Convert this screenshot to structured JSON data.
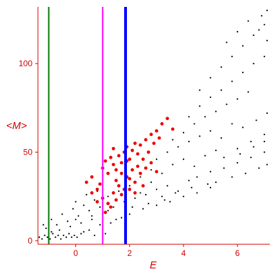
{
  "chart_data": {
    "type": "scatter",
    "title": "",
    "xlabel": "E",
    "ylabel": "<M>",
    "xlim": [
      -1.4,
      7.2
    ],
    "ylim": [
      -2,
      132
    ],
    "x_ticks": [
      0,
      2,
      4,
      6
    ],
    "y_ticks": [
      0,
      50,
      100
    ],
    "grid": false,
    "legend": "none",
    "colors": {
      "axis": "#d40000",
      "background": "#ffffff"
    },
    "vertical_lines": [
      {
        "x": -1.0,
        "color": "#007700",
        "width": "thin"
      },
      {
        "x": 1.0,
        "color": "#ff00ff",
        "width": "thin"
      },
      {
        "x": 1.85,
        "color": "#0000ff",
        "width": "thick"
      }
    ],
    "series": [
      {
        "color": "#000000",
        "marker": "small dots",
        "points": [
          [
            -1.35,
            2
          ],
          [
            -1.25,
            1
          ],
          [
            -1.15,
            3
          ],
          [
            -1.05,
            2
          ],
          [
            -0.95,
            1
          ],
          [
            -0.85,
            4
          ],
          [
            -0.75,
            2
          ],
          [
            -0.65,
            3
          ],
          [
            -0.55,
            1
          ],
          [
            -0.45,
            3
          ],
          [
            -0.35,
            2
          ],
          [
            -0.25,
            4
          ],
          [
            -0.15,
            2
          ],
          [
            -0.05,
            3
          ],
          [
            0.05,
            2
          ],
          [
            0.2,
            4
          ],
          [
            -1.1,
            7
          ],
          [
            -0.9,
            12
          ],
          [
            -0.7,
            9
          ],
          [
            -0.5,
            15
          ],
          [
            -0.3,
            11
          ],
          [
            -0.1,
            18
          ],
          [
            0.1,
            14
          ],
          [
            0.3,
            20
          ],
          [
            0.5,
            17
          ],
          [
            0.7,
            23
          ],
          [
            0.9,
            19
          ],
          [
            -0.6,
            6
          ],
          [
            -0.2,
            8
          ],
          [
            0.2,
            10
          ],
          [
            0.6,
            12
          ],
          [
            1.0,
            15
          ],
          [
            0.0,
            22
          ],
          [
            0.4,
            26
          ],
          [
            0.8,
            28
          ],
          [
            1.2,
            25
          ],
          [
            1.6,
            28
          ],
          [
            2.0,
            31
          ],
          [
            2.4,
            27
          ],
          [
            2.8,
            33
          ],
          [
            1.4,
            19
          ],
          [
            1.8,
            22
          ],
          [
            2.2,
            24
          ],
          [
            2.6,
            26
          ],
          [
            3.0,
            29
          ],
          [
            3.4,
            31
          ],
          [
            3.8,
            28
          ],
          [
            4.2,
            34
          ],
          [
            1.5,
            12
          ],
          [
            2.0,
            15
          ],
          [
            2.5,
            18
          ],
          [
            3.0,
            20
          ],
          [
            3.5,
            22
          ],
          [
            4.0,
            25
          ],
          [
            4.5,
            27
          ],
          [
            5.0,
            30
          ],
          [
            2.4,
            36
          ],
          [
            2.8,
            40
          ],
          [
            3.2,
            38
          ],
          [
            3.6,
            43
          ],
          [
            4.0,
            46
          ],
          [
            4.4,
            42
          ],
          [
            4.8,
            48
          ],
          [
            5.2,
            51
          ],
          [
            3.0,
            46
          ],
          [
            3.4,
            50
          ],
          [
            3.8,
            53
          ],
          [
            4.2,
            56
          ],
          [
            4.6,
            59
          ],
          [
            5.0,
            62
          ],
          [
            5.4,
            58
          ],
          [
            5.8,
            66
          ],
          [
            3.6,
            57
          ],
          [
            4.0,
            61
          ],
          [
            4.4,
            66
          ],
          [
            4.8,
            70
          ],
          [
            5.2,
            73
          ],
          [
            5.6,
            77
          ],
          [
            6.0,
            80
          ],
          [
            6.4,
            84
          ],
          [
            4.2,
            70
          ],
          [
            4.6,
            76
          ],
          [
            5.0,
            81
          ],
          [
            5.4,
            85
          ],
          [
            5.8,
            90
          ],
          [
            6.2,
            95
          ],
          [
            6.6,
            100
          ],
          [
            7.0,
            104
          ],
          [
            4.6,
            85
          ],
          [
            5.0,
            92
          ],
          [
            5.4,
            98
          ],
          [
            5.8,
            104
          ],
          [
            6.2,
            110
          ],
          [
            6.6,
            116
          ],
          [
            7.0,
            122
          ],
          [
            7.1,
            130
          ],
          [
            5.6,
            112
          ],
          [
            6.0,
            118
          ],
          [
            6.4,
            124
          ],
          [
            6.8,
            119
          ],
          [
            7.1,
            113
          ],
          [
            6.9,
            127
          ],
          [
            4.5,
            36
          ],
          [
            5.0,
            39
          ],
          [
            5.5,
            41
          ],
          [
            6.0,
            44
          ],
          [
            6.5,
            47
          ],
          [
            7.0,
            50
          ],
          [
            5.2,
            33
          ],
          [
            5.8,
            36
          ],
          [
            6.3,
            38
          ],
          [
            6.8,
            41
          ],
          [
            7.1,
            43
          ],
          [
            6.0,
            52
          ],
          [
            6.5,
            56
          ],
          [
            7.0,
            60
          ],
          [
            6.2,
            64
          ],
          [
            6.7,
            68
          ],
          [
            7.1,
            72
          ],
          [
            5.5,
            47
          ],
          [
            6.1,
            49
          ],
          [
            6.6,
            53
          ],
          [
            7.0,
            56
          ],
          [
            3.2,
            25
          ],
          [
            3.7,
            27
          ],
          [
            4.3,
            30
          ],
          [
            4.9,
            32
          ],
          [
            2.1,
            19
          ],
          [
            2.7,
            21
          ],
          [
            3.3,
            23
          ],
          [
            0.5,
            6
          ],
          [
            0.9,
            9
          ],
          [
            1.3,
            10
          ],
          [
            1.7,
            13
          ],
          [
            1.1,
            4
          ],
          [
            0.7,
            3
          ],
          [
            0.3,
            5
          ],
          [
            -0.9,
            5
          ],
          [
            -1.2,
            9
          ],
          [
            0.0,
            12
          ],
          [
            0.6,
            14
          ],
          [
            1.2,
            17
          ]
        ]
      },
      {
        "color": "#ee0000",
        "marker": "larger dots",
        "points": [
          [
            0.4,
            33
          ],
          [
            0.6,
            36
          ],
          [
            0.8,
            29
          ],
          [
            1.0,
            41
          ],
          [
            1.1,
            45
          ],
          [
            1.2,
            38
          ],
          [
            1.3,
            47
          ],
          [
            1.4,
            43
          ],
          [
            1.5,
            34
          ],
          [
            1.6,
            48
          ],
          [
            1.7,
            44
          ],
          [
            1.8,
            50
          ],
          [
            1.9,
            53
          ],
          [
            2.0,
            46
          ],
          [
            2.1,
            51
          ],
          [
            2.2,
            55
          ],
          [
            2.3,
            49
          ],
          [
            2.4,
            54
          ],
          [
            2.6,
            57
          ],
          [
            2.8,
            60
          ],
          [
            3.0,
            62
          ],
          [
            3.2,
            66
          ],
          [
            3.4,
            69
          ],
          [
            3.6,
            63
          ],
          [
            1.0,
            24
          ],
          [
            1.2,
            21
          ],
          [
            1.4,
            27
          ],
          [
            1.6,
            31
          ],
          [
            1.8,
            29
          ],
          [
            2.0,
            35
          ],
          [
            2.2,
            33
          ],
          [
            2.4,
            38
          ],
          [
            2.6,
            41
          ],
          [
            2.8,
            44
          ],
          [
            3.0,
            39
          ],
          [
            1.1,
            16
          ],
          [
            1.3,
            19
          ],
          [
            1.5,
            23
          ],
          [
            1.7,
            26
          ],
          [
            1.9,
            36
          ],
          [
            2.1,
            40
          ],
          [
            2.3,
            42
          ],
          [
            2.5,
            46
          ],
          [
            2.7,
            50
          ],
          [
            0.9,
            32
          ],
          [
            1.5,
            40
          ],
          [
            1.7,
            38
          ],
          [
            2.0,
            29
          ],
          [
            0.8,
            22
          ],
          [
            0.6,
            27
          ],
          [
            1.4,
            52
          ],
          [
            1.9,
            45
          ],
          [
            2.2,
            27
          ],
          [
            2.5,
            31
          ],
          [
            2.9,
            55
          ],
          [
            3.1,
            58
          ]
        ]
      }
    ]
  }
}
